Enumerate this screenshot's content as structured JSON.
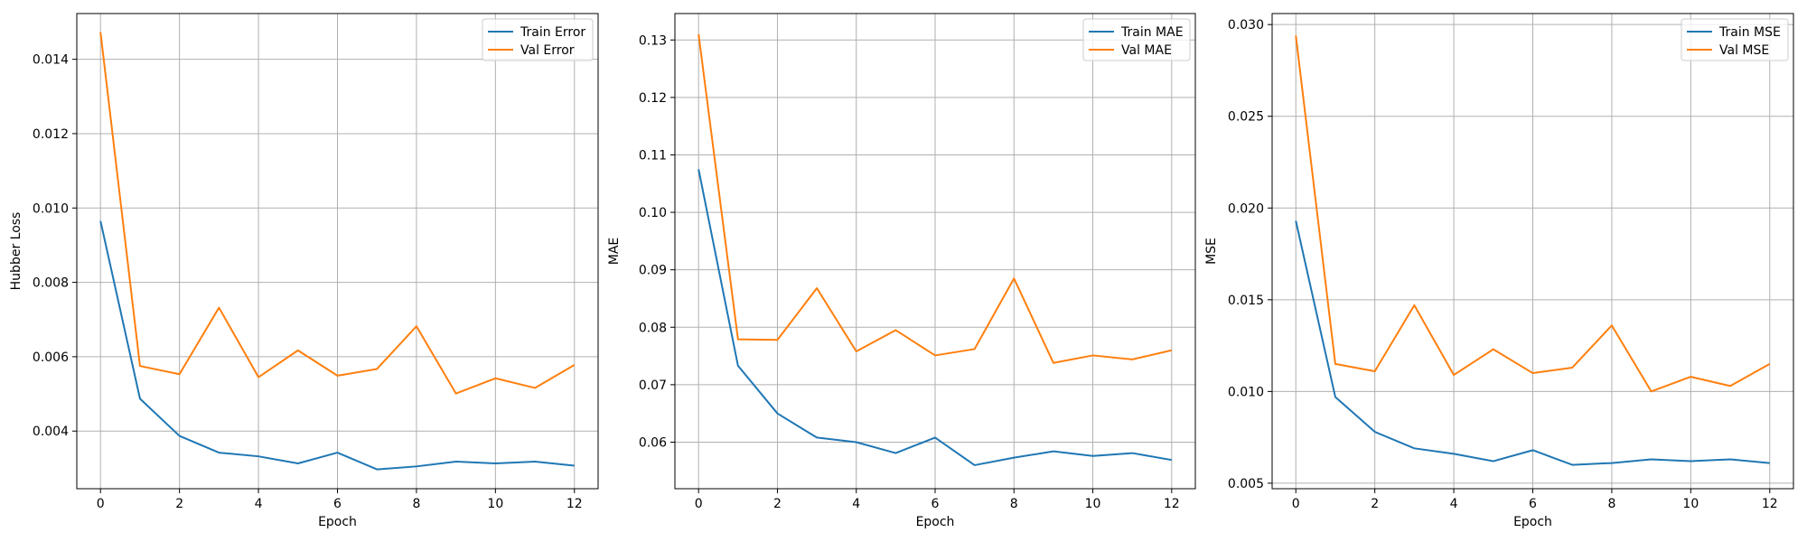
{
  "colors": {
    "train": "#1f77b4",
    "val": "#ff7f0e",
    "grid": "#b0b0b0",
    "frame": "#000000"
  },
  "chart_data": [
    {
      "type": "line",
      "xlabel": "Epoch",
      "ylabel": "Hubber Loss",
      "legend_position": "top-right",
      "grid": true,
      "xlim": [
        -0.6,
        12.6
      ],
      "ylim": [
        0.00245,
        0.01523
      ],
      "xticks": [
        0,
        2,
        4,
        6,
        8,
        10,
        12
      ],
      "yticks": [
        0.004,
        0.006,
        0.008,
        0.01,
        0.012,
        0.014
      ],
      "ytick_labels": [
        "0.004",
        "0.006",
        "0.008",
        "0.010",
        "0.012",
        "0.014"
      ],
      "x": [
        0,
        1,
        2,
        3,
        4,
        5,
        6,
        7,
        8,
        9,
        10,
        11,
        12
      ],
      "series": [
        {
          "name": "Train Error",
          "color": "#1f77b4",
          "values": [
            0.00965,
            0.00487,
            0.00387,
            0.00342,
            0.00332,
            0.00313,
            0.00342,
            0.00297,
            0.00305,
            0.00318,
            0.00313,
            0.00318,
            0.00307
          ]
        },
        {
          "name": "Val Error",
          "color": "#ff7f0e",
          "values": [
            0.01473,
            0.00575,
            0.00553,
            0.00732,
            0.00545,
            0.00617,
            0.00549,
            0.00567,
            0.00682,
            0.00501,
            0.00542,
            0.00516,
            0.00578
          ]
        }
      ]
    },
    {
      "type": "line",
      "xlabel": "Epoch",
      "ylabel": "MAE",
      "legend_position": "top-right",
      "grid": true,
      "xlim": [
        -0.6,
        12.6
      ],
      "ylim": [
        0.0519,
        0.1346
      ],
      "xticks": [
        0,
        2,
        4,
        6,
        8,
        10,
        12
      ],
      "yticks": [
        0.06,
        0.07,
        0.08,
        0.09,
        0.1,
        0.11,
        0.12,
        0.13
      ],
      "ytick_labels": [
        "0.06",
        "0.07",
        "0.08",
        "0.09",
        "0.10",
        "0.11",
        "0.12",
        "0.13"
      ],
      "x": [
        0,
        1,
        2,
        3,
        4,
        5,
        6,
        7,
        8,
        9,
        10,
        11,
        12
      ],
      "series": [
        {
          "name": "Train MAE",
          "color": "#1f77b4",
          "values": [
            0.1075,
            0.0733,
            0.065,
            0.0608,
            0.06,
            0.0581,
            0.0608,
            0.056,
            0.0573,
            0.0584,
            0.0576,
            0.0581,
            0.0569
          ]
        },
        {
          "name": "Val MAE",
          "color": "#ff7f0e",
          "values": [
            0.131,
            0.0779,
            0.0778,
            0.0868,
            0.0758,
            0.0795,
            0.0751,
            0.0762,
            0.0885,
            0.0738,
            0.0751,
            0.0744,
            0.076
          ]
        }
      ]
    },
    {
      "type": "line",
      "xlabel": "Epoch",
      "ylabel": "MSE",
      "legend_position": "top-right",
      "grid": true,
      "xlim": [
        -0.6,
        12.6
      ],
      "ylim": [
        0.0047,
        0.0306
      ],
      "xticks": [
        0,
        2,
        4,
        6,
        8,
        10,
        12
      ],
      "yticks": [
        0.005,
        0.01,
        0.015,
        0.02,
        0.025,
        0.03
      ],
      "ytick_labels": [
        "0.005",
        "0.010",
        "0.015",
        "0.020",
        "0.025",
        "0.030"
      ],
      "x": [
        0,
        1,
        2,
        3,
        4,
        5,
        6,
        7,
        8,
        9,
        10,
        11,
        12
      ],
      "series": [
        {
          "name": "Train MSE",
          "color": "#1f77b4",
          "values": [
            0.0193,
            0.0097,
            0.0078,
            0.0069,
            0.0066,
            0.0062,
            0.0068,
            0.006,
            0.0061,
            0.0063,
            0.0062,
            0.0063,
            0.0061
          ]
        },
        {
          "name": "Val MSE",
          "color": "#ff7f0e",
          "values": [
            0.0294,
            0.0115,
            0.0111,
            0.0147,
            0.0109,
            0.0123,
            0.011,
            0.0113,
            0.0136,
            0.01,
            0.0108,
            0.0103,
            0.0115
          ]
        }
      ]
    }
  ]
}
